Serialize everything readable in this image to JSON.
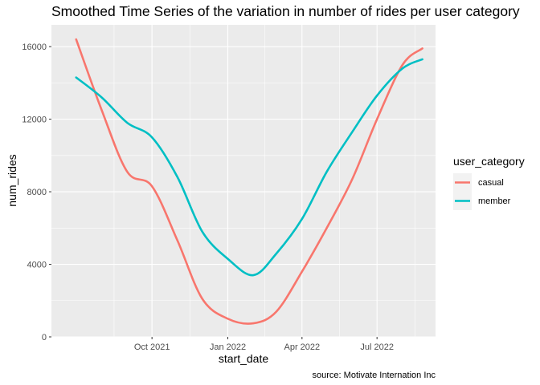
{
  "chart_data": {
    "type": "line",
    "title": "Smoothed Time Series of the variation in number of rides per user category",
    "xlabel": "start_date",
    "ylabel": "num_rides",
    "caption": "source: Motivate Internation Inc",
    "grid": true,
    "legend_position": "right",
    "legend_title": "user_category",
    "x_ticks": [
      {
        "date": "2021-10-01",
        "label": "Oct 2021"
      },
      {
        "date": "2022-01-01",
        "label": "Jan 2022"
      },
      {
        "date": "2022-04-01",
        "label": "Apr 2022"
      },
      {
        "date": "2022-07-01",
        "label": "Jul 2022"
      }
    ],
    "y_ticks": [
      0,
      4000,
      8000,
      12000,
      16000
    ],
    "xlim": [
      "2021-06-01",
      "2022-09-10"
    ],
    "ylim": [
      0,
      17200
    ],
    "series": [
      {
        "name": "casual",
        "color": "#F8766D",
        "points": [
          [
            "2021-07-01",
            16400
          ],
          [
            "2021-08-01",
            12500
          ],
          [
            "2021-09-01",
            9100
          ],
          [
            "2021-10-01",
            8300
          ],
          [
            "2021-11-01",
            5300
          ],
          [
            "2021-12-01",
            2100
          ],
          [
            "2022-01-01",
            1000
          ],
          [
            "2022-02-01",
            750
          ],
          [
            "2022-03-01",
            1400
          ],
          [
            "2022-04-01",
            3600
          ],
          [
            "2022-05-01",
            6000
          ],
          [
            "2022-06-01",
            8700
          ],
          [
            "2022-07-01",
            12000
          ],
          [
            "2022-08-01",
            15000
          ],
          [
            "2022-08-25",
            15900
          ]
        ]
      },
      {
        "name": "member",
        "color": "#00BFC4",
        "points": [
          [
            "2021-07-01",
            14300
          ],
          [
            "2021-08-01",
            13200
          ],
          [
            "2021-09-01",
            11800
          ],
          [
            "2021-10-01",
            11000
          ],
          [
            "2021-11-01",
            8800
          ],
          [
            "2021-12-01",
            5800
          ],
          [
            "2022-01-01",
            4300
          ],
          [
            "2022-02-01",
            3400
          ],
          [
            "2022-03-01",
            4600
          ],
          [
            "2022-04-01",
            6500
          ],
          [
            "2022-05-01",
            9100
          ],
          [
            "2022-06-01",
            11300
          ],
          [
            "2022-07-01",
            13300
          ],
          [
            "2022-08-01",
            14800
          ],
          [
            "2022-08-25",
            15300
          ]
        ]
      }
    ]
  }
}
